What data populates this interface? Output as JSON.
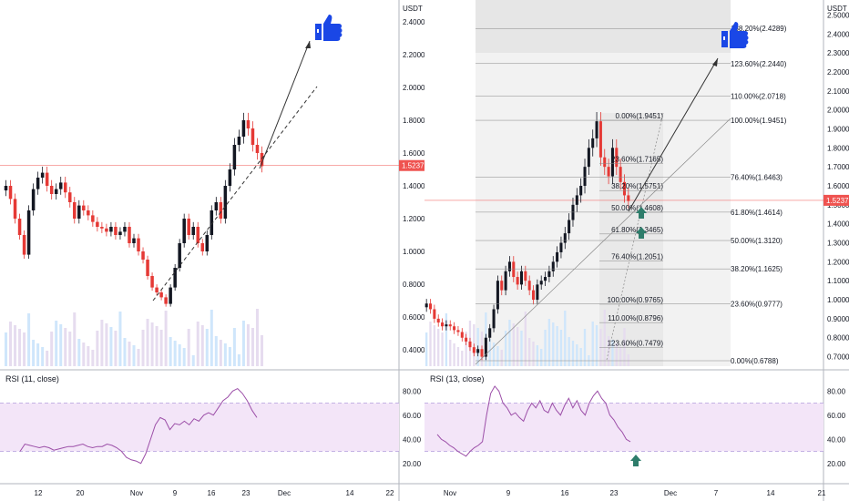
{
  "colors": {
    "up": "#131722",
    "down": "#e53935",
    "rsi_line": "#9c4fa8",
    "rsi_band": "#f3e5f8",
    "price_line": "#ef5350",
    "arrow_green": "#2e7d6b",
    "thumb": "#1a47e6",
    "vol_up": "#cfe6fb",
    "vol_down": "#e6dcef"
  },
  "left": {
    "currency": "USDT",
    "price_label": "1.5237",
    "rsi_title": "RSI (11, close)",
    "y_ticks": [
      "2.4000",
      "2.2000",
      "2.0000",
      "1.8000",
      "1.6000",
      "1.4000",
      "1.2000",
      "1.0000",
      "0.8000",
      "0.6000",
      "0.4000"
    ],
    "rsi_ticks": [
      "80.00",
      "60.00",
      "40.00",
      "20.00"
    ],
    "x_ticks": [
      "12",
      "20",
      "Nov",
      "9",
      "16",
      "23",
      "Dec",
      "14",
      "22"
    ],
    "thumb_icon": "thumbs-up-icon"
  },
  "right": {
    "currency": "USDT",
    "price_label": "1.5237",
    "rsi_title": "RSI (13, close)",
    "y_ticks": [
      "2.5000",
      "2.4000",
      "2.3000",
      "2.2000",
      "2.1000",
      "2.0000",
      "1.9000",
      "1.8000",
      "1.7000",
      "1.6000",
      "1.5000",
      "1.4000",
      "1.3000",
      "1.2000",
      "1.1000",
      "1.0000",
      "0.9000",
      "0.8000",
      "0.7000"
    ],
    "rsi_ticks": [
      "80.00",
      "60.00",
      "40.00",
      "20.00"
    ],
    "x_ticks": [
      "Nov",
      "9",
      "16",
      "23",
      "Dec",
      "7",
      "14",
      "21"
    ],
    "fib_left": [
      "0.00%(1.9451)",
      "23.60%(1.7165)",
      "38.20%(1.5751)",
      "50.00%(1.4608)",
      "61.80%(1.3465)",
      "76.40%(1.2051)",
      "100.00%(0.9765)",
      "110.00%(0.8796)",
      "123.60%(0.7479)"
    ],
    "fib_right": [
      "138.20%(2.4289)",
      "123.60%(2.2440)",
      "110.00%(2.0718)",
      "100.00%(1.9451)",
      "76.40%(1.6463)",
      "61.80%(1.4614)",
      "50.00%(1.3120)",
      "38.20%(1.1625)",
      "23.60%(0.9777)",
      "0.00%(0.6788)"
    ],
    "thumb_icon": "thumbs-up-icon",
    "green_arrow_icon": "up-arrow-icon"
  },
  "chart_data": [
    {
      "type": "candlestick",
      "title": "",
      "ylabel": "USDT",
      "ylim": [
        0.3,
        2.5
      ],
      "x_ticks": [
        "12",
        "20",
        "Nov",
        "9",
        "16",
        "23",
        "Dec",
        "14",
        "22"
      ],
      "last_price": 1.5237,
      "close": [
        1.4,
        1.32,
        1.2,
        1.1,
        0.98,
        1.25,
        1.38,
        1.45,
        1.48,
        1.4,
        1.35,
        1.38,
        1.42,
        1.36,
        1.3,
        1.2,
        1.28,
        1.25,
        1.22,
        1.18,
        1.15,
        1.14,
        1.12,
        1.15,
        1.1,
        1.12,
        1.15,
        1.05,
        1.08,
        1.0,
        0.95,
        0.85,
        0.78,
        0.75,
        0.72,
        0.68,
        0.78,
        0.9,
        1.05,
        1.2,
        1.1,
        1.15,
        1.05,
        1.0,
        1.1,
        1.25,
        1.3,
        1.2,
        1.4,
        1.5,
        1.65,
        1.7,
        1.8,
        1.75,
        1.65,
        1.6,
        1.52
      ],
      "rsi": [
        30,
        36,
        35,
        34,
        33,
        34,
        33,
        31,
        32,
        33,
        34,
        34,
        35,
        36,
        34,
        33,
        34,
        34,
        36,
        35,
        33,
        30,
        25,
        23,
        22,
        20,
        28,
        40,
        52,
        58,
        56,
        48,
        53,
        52,
        55,
        52,
        57,
        55,
        60,
        62,
        60,
        66,
        72,
        75,
        80,
        82,
        78,
        72,
        64,
        58
      ]
    },
    {
      "type": "candlestick",
      "title": "",
      "ylabel": "USDT",
      "ylim": [
        0.65,
        2.55
      ],
      "x_ticks": [
        "Nov",
        "9",
        "16",
        "23",
        "Dec",
        "7",
        "14",
        "21"
      ],
      "last_price": 1.5237,
      "close": [
        0.98,
        0.95,
        0.9,
        0.88,
        0.86,
        0.87,
        0.86,
        0.84,
        0.83,
        0.8,
        0.78,
        0.75,
        0.72,
        0.74,
        0.7,
        0.8,
        0.85,
        0.95,
        1.1,
        1.05,
        1.15,
        1.2,
        1.12,
        1.08,
        1.15,
        1.1,
        1.05,
        1.0,
        1.08,
        1.1,
        1.12,
        1.15,
        1.2,
        1.25,
        1.3,
        1.35,
        1.42,
        1.5,
        1.55,
        1.6,
        1.7,
        1.8,
        1.85,
        1.94,
        1.75,
        1.7,
        1.65,
        1.8,
        1.7,
        1.62,
        1.55,
        1.52
      ],
      "rsi": [
        44,
        40,
        38,
        35,
        33,
        30,
        28,
        26,
        30,
        33,
        35,
        38,
        60,
        78,
        84,
        80,
        70,
        66,
        60,
        62,
        58,
        55,
        64,
        70,
        66,
        72,
        64,
        62,
        70,
        64,
        60,
        68,
        74,
        66,
        72,
        64,
        60,
        70,
        76,
        80,
        74,
        70,
        60,
        56,
        50,
        46,
        40,
        38
      ]
    }
  ]
}
